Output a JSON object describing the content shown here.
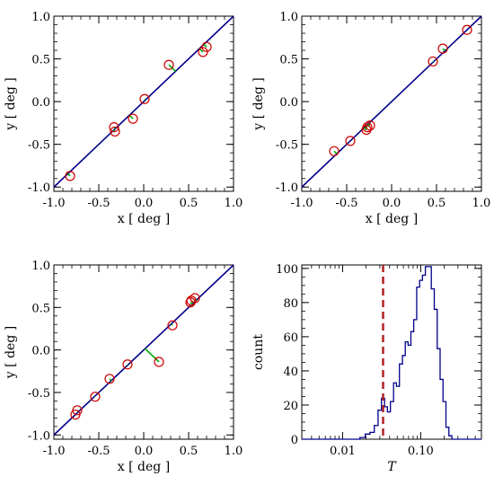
{
  "chart_data": [
    {
      "type": "scatter",
      "xlabel": "x [ deg ]",
      "ylabel": "y [ deg ]",
      "xlim": [
        -1.0,
        1.0
      ],
      "ylim": [
        -1.05,
        1.0
      ],
      "xticks": [
        "-1.0",
        "-0.5",
        "0.0",
        "0.5",
        "1.0"
      ],
      "yticks": [
        "-1.0",
        "-0.5",
        "0.0",
        "0.5",
        "1.0"
      ],
      "line": {
        "slope": 1,
        "intercept": 0
      },
      "points": [
        {
          "x": -0.82,
          "y": -0.87
        },
        {
          "x": -0.33,
          "y": -0.3
        },
        {
          "x": -0.32,
          "y": -0.35
        },
        {
          "x": -0.12,
          "y": -0.2
        },
        {
          "x": 0.01,
          "y": 0.03
        },
        {
          "x": 0.28,
          "y": 0.43
        },
        {
          "x": 0.66,
          "y": 0.58
        },
        {
          "x": 0.7,
          "y": 0.64
        }
      ]
    },
    {
      "type": "scatter",
      "xlabel": "x [ deg ]",
      "ylabel": "y [ deg ]",
      "xlim": [
        -1.0,
        1.0
      ],
      "ylim": [
        -1.05,
        1.0
      ],
      "xticks": [
        "-1.0",
        "-0.5",
        "0.0",
        "0.5",
        "1.0"
      ],
      "yticks": [
        "-1.0",
        "-0.5",
        "0.0",
        "0.5",
        "1.0"
      ],
      "line": {
        "slope": 1,
        "intercept": 0
      },
      "points": [
        {
          "x": -0.64,
          "y": -0.58
        },
        {
          "x": -0.46,
          "y": -0.46
        },
        {
          "x": -0.28,
          "y": -0.33
        },
        {
          "x": -0.27,
          "y": -0.3
        },
        {
          "x": -0.24,
          "y": -0.28
        },
        {
          "x": 0.46,
          "y": 0.47
        },
        {
          "x": 0.57,
          "y": 0.62
        },
        {
          "x": 0.84,
          "y": 0.84
        }
      ]
    },
    {
      "type": "scatter",
      "xlabel": "x [ deg ]",
      "ylabel": "y [ deg ]",
      "xlim": [
        -1.0,
        1.0
      ],
      "ylim": [
        -1.05,
        1.0
      ],
      "xticks": [
        "-1.0",
        "-0.5",
        "0.0",
        "0.5",
        "1.0"
      ],
      "yticks": [
        "-1.0",
        "-0.5",
        "0.0",
        "0.5",
        "1.0"
      ],
      "line": {
        "slope": 1,
        "intercept": 0
      },
      "points": [
        {
          "x": -0.76,
          "y": -0.76
        },
        {
          "x": -0.74,
          "y": -0.71
        },
        {
          "x": -0.54,
          "y": -0.55
        },
        {
          "x": -0.38,
          "y": -0.34
        },
        {
          "x": -0.18,
          "y": -0.17
        },
        {
          "x": 0.17,
          "y": -0.14
        },
        {
          "x": 0.32,
          "y": 0.29
        },
        {
          "x": 0.52,
          "y": 0.56
        },
        {
          "x": 0.53,
          "y": 0.58
        },
        {
          "x": 0.57,
          "y": 0.61
        }
      ]
    },
    {
      "type": "histogram",
      "xlabel": "T",
      "ylabel": "count",
      "xscale": "log",
      "xlim": [
        0.003,
        0.6
      ],
      "ylim": [
        0,
        102
      ],
      "xticks": [
        "0.01",
        "0.10"
      ],
      "yticks": [
        "0",
        "20",
        "40",
        "60",
        "80",
        "100"
      ],
      "threshold_line": 0.033,
      "histogram_color": "#00008b",
      "threshold_color": "#b22222",
      "bins": [
        {
          "x": 0.018,
          "count": 1
        },
        {
          "x": 0.021,
          "count": 3
        },
        {
          "x": 0.024,
          "count": 4
        },
        {
          "x": 0.027,
          "count": 8
        },
        {
          "x": 0.03,
          "count": 17
        },
        {
          "x": 0.033,
          "count": 24
        },
        {
          "x": 0.036,
          "count": 19
        },
        {
          "x": 0.039,
          "count": 16
        },
        {
          "x": 0.043,
          "count": 22
        },
        {
          "x": 0.047,
          "count": 33
        },
        {
          "x": 0.051,
          "count": 31
        },
        {
          "x": 0.056,
          "count": 44
        },
        {
          "x": 0.061,
          "count": 49
        },
        {
          "x": 0.066,
          "count": 57
        },
        {
          "x": 0.072,
          "count": 55
        },
        {
          "x": 0.078,
          "count": 63
        },
        {
          "x": 0.085,
          "count": 70
        },
        {
          "x": 0.093,
          "count": 89
        },
        {
          "x": 0.101,
          "count": 93
        },
        {
          "x": 0.11,
          "count": 96
        },
        {
          "x": 0.12,
          "count": 101
        },
        {
          "x": 0.131,
          "count": 101
        },
        {
          "x": 0.143,
          "count": 88
        },
        {
          "x": 0.156,
          "count": 76
        },
        {
          "x": 0.17,
          "count": 53
        },
        {
          "x": 0.185,
          "count": 35
        },
        {
          "x": 0.202,
          "count": 22
        },
        {
          "x": 0.22,
          "count": 7
        },
        {
          "x": 0.24,
          "count": 2
        },
        {
          "x": 0.262,
          "count": 0
        }
      ]
    }
  ]
}
